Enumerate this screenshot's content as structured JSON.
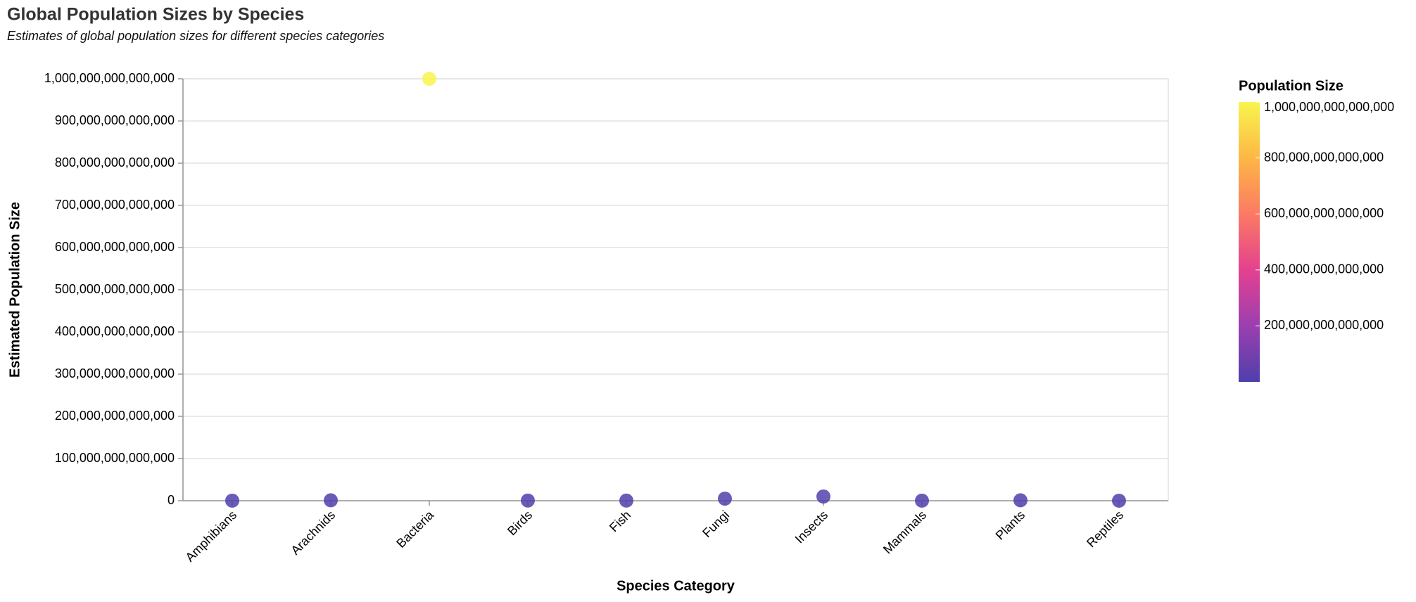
{
  "chart_data": {
    "type": "scatter",
    "title": "Global Population Sizes by Species",
    "subtitle": "Estimates of global population sizes for different species categories",
    "x_label": "Species Category",
    "y_label": "Estimated Population Size",
    "categories": [
      "Amphibians",
      "Arachnids",
      "Bacteria",
      "Birds",
      "Fish",
      "Fungi",
      "Insects",
      "Mammals",
      "Plants",
      "Reptiles"
    ],
    "values": [
      200000000000,
      1000000000000,
      1000000000000000,
      500000000000,
      350000000000,
      5000000000000,
      10000000000000,
      130000000000,
      1000000000000,
      100000000000
    ],
    "ylim": [
      0,
      1000000000000000
    ],
    "yticks": [
      0,
      {
        "value": 100000000000000,
        "label": "100,000,000,000,000"
      },
      {
        "value": 200000000000000,
        "label": "200,000,000,000,000"
      },
      {
        "value": 300000000000000,
        "label": "300,000,000,000,000"
      },
      {
        "value": 400000000000000,
        "label": "400,000,000,000,000"
      },
      {
        "value": 500000000000000,
        "label": "500,000,000,000,000"
      },
      {
        "value": 600000000000000,
        "label": "600,000,000,000,000"
      },
      {
        "value": 700000000000000,
        "label": "700,000,000,000,000"
      },
      {
        "value": 800000000000000,
        "label": "800,000,000,000,000"
      },
      {
        "value": 900000000000000,
        "label": "900,000,000,000,000"
      },
      {
        "value": 1000000000000000,
        "label": "1,000,000,000,000,000"
      }
    ],
    "grid": true,
    "color_legend": {
      "title": "Population Size",
      "colors": [
        "#4f3fab",
        "#9b3fb0",
        "#e4418f",
        "#fb7a63",
        "#fdb745",
        "#f8f54e"
      ],
      "ticks": [
        {
          "value": 200000000000000,
          "label": "200,000,000,000,000"
        },
        {
          "value": 400000000000000,
          "label": "400,000,000,000,000"
        },
        {
          "value": 600000000000000,
          "label": "600,000,000,000,000"
        },
        {
          "value": 800000000000000,
          "label": "800,000,000,000,000"
        },
        {
          "value": 1000000000000000,
          "label": "1,000,000,000,000,000"
        }
      ]
    }
  }
}
